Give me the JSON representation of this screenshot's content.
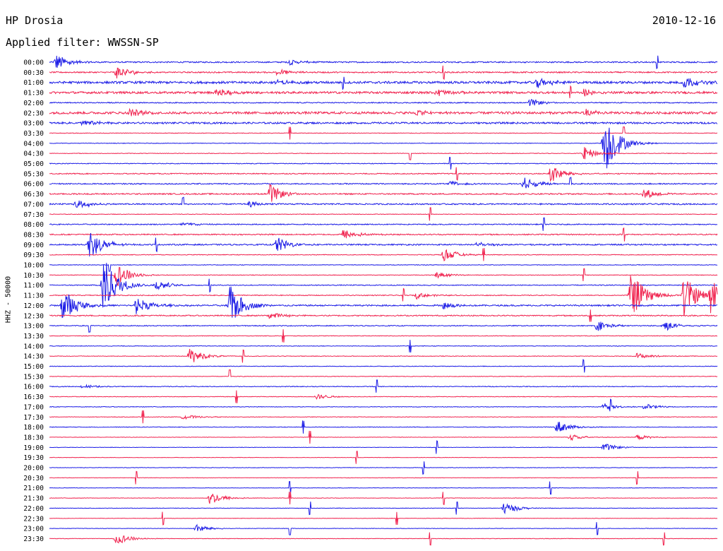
{
  "header": {
    "station": "HP Drosia",
    "date": "2010-12-16",
    "filter": "Applied filter: WWSSN-SP"
  },
  "axis_label": "HHZ - 50000",
  "colors": {
    "blue": "#1c1ce6",
    "red": "#f0234f"
  },
  "chart_data": {
    "type": "line",
    "title": "HP Drosia",
    "channel": "HHZ",
    "scale": 50000,
    "filter": "WWSSN-SP",
    "date": "2010-12-16",
    "row_labels": [
      "00:00",
      "00:30",
      "01:00",
      "01:30",
      "02:00",
      "02:30",
      "03:00",
      "03:30",
      "04:00",
      "04:30",
      "05:00",
      "05:30",
      "06:00",
      "06:30",
      "07:00",
      "07:30",
      "08:00",
      "08:30",
      "09:00",
      "09:30",
      "10:00",
      "10:30",
      "11:00",
      "11:30",
      "12:00",
      "12:30",
      "13:00",
      "13:30",
      "14:00",
      "14:30",
      "15:00",
      "15:30",
      "16:00",
      "16:30",
      "17:00",
      "17:30",
      "18:00",
      "18:30",
      "19:00",
      "19:30",
      "20:00",
      "20:30",
      "21:00",
      "21:30",
      "22:00",
      "22:30",
      "23:00",
      "23:30"
    ],
    "row_colors": [
      "blue",
      "red"
    ],
    "noise_level": [
      0.9,
      0.9,
      1.6,
      1.5,
      0.7,
      1.6,
      1.2,
      0.4,
      0.4,
      0.4,
      0.5,
      0.7,
      0.8,
      0.9,
      0.9,
      0.4,
      0.7,
      0.8,
      0.9,
      0.5,
      0.4,
      0.4,
      0.6,
      0.6,
      1.0,
      0.8,
      0.6,
      0.4,
      0.4,
      0.4,
      0.4,
      0.4,
      0.5,
      0.4,
      0.4,
      0.4,
      0.4,
      0.3,
      0.3,
      0.3,
      0.3,
      0.3,
      0.3,
      0.3,
      0.3,
      0.3,
      0.3,
      0.3
    ],
    "events": [
      {
        "row": 0,
        "t": 0.01,
        "amp": 12
      },
      {
        "row": 0,
        "t": 0.36,
        "amp": 4
      },
      {
        "row": 1,
        "t": 0.1,
        "amp": 10
      },
      {
        "row": 1,
        "t": 0.34,
        "amp": 5
      },
      {
        "row": 2,
        "t": 0.34,
        "amp": 4
      },
      {
        "row": 2,
        "t": 0.73,
        "amp": 8
      },
      {
        "row": 2,
        "t": 0.95,
        "amp": 9
      },
      {
        "row": 3,
        "t": 0.25,
        "amp": 6
      },
      {
        "row": 3,
        "t": 0.58,
        "amp": 6
      },
      {
        "row": 3,
        "t": 0.8,
        "amp": 5
      },
      {
        "row": 4,
        "t": 0.72,
        "amp": 6
      },
      {
        "row": 5,
        "t": 0.12,
        "amp": 6
      },
      {
        "row": 5,
        "t": 0.55,
        "amp": 5
      },
      {
        "row": 5,
        "t": 0.8,
        "amp": 6
      },
      {
        "row": 6,
        "t": 0.05,
        "amp": 6
      },
      {
        "row": 8,
        "t": 0.83,
        "amp": 48
      },
      {
        "row": 9,
        "t": 0.8,
        "amp": 10
      },
      {
        "row": 11,
        "t": 0.75,
        "amp": 14
      },
      {
        "row": 12,
        "t": 0.71,
        "amp": 10
      },
      {
        "row": 12,
        "t": 0.6,
        "amp": 4
      },
      {
        "row": 13,
        "t": 0.33,
        "amp": 14
      },
      {
        "row": 13,
        "t": 0.89,
        "amp": 8
      },
      {
        "row": 14,
        "t": 0.04,
        "amp": 8
      },
      {
        "row": 14,
        "t": 0.3,
        "amp": 4
      },
      {
        "row": 16,
        "t": 0.2,
        "amp": 4
      },
      {
        "row": 17,
        "t": 0.44,
        "amp": 8
      },
      {
        "row": 18,
        "t": 0.34,
        "amp": 12
      },
      {
        "row": 18,
        "t": 0.06,
        "amp": 24
      },
      {
        "row": 18,
        "t": 0.64,
        "amp": 4
      },
      {
        "row": 19,
        "t": 0.59,
        "amp": 10
      },
      {
        "row": 21,
        "t": 0.1,
        "amp": 18
      },
      {
        "row": 21,
        "t": 0.58,
        "amp": 5
      },
      {
        "row": 22,
        "t": 0.08,
        "amp": 44
      },
      {
        "row": 22,
        "t": 0.16,
        "amp": 8
      },
      {
        "row": 23,
        "t": 0.87,
        "amp": 36
      },
      {
        "row": 23,
        "t": 0.95,
        "amp": 30
      },
      {
        "row": 23,
        "t": 0.99,
        "amp": 26
      },
      {
        "row": 23,
        "t": 0.55,
        "amp": 5
      },
      {
        "row": 24,
        "t": 0.02,
        "amp": 26
      },
      {
        "row": 24,
        "t": 0.13,
        "amp": 14
      },
      {
        "row": 24,
        "t": 0.27,
        "amp": 30
      },
      {
        "row": 24,
        "t": 0.59,
        "amp": 6
      },
      {
        "row": 25,
        "t": 0.33,
        "amp": 6
      },
      {
        "row": 26,
        "t": 0.82,
        "amp": 8
      },
      {
        "row": 26,
        "t": 0.92,
        "amp": 8
      },
      {
        "row": 29,
        "t": 0.21,
        "amp": 12
      },
      {
        "row": 29,
        "t": 0.88,
        "amp": 5
      },
      {
        "row": 32,
        "t": 0.05,
        "amp": 3
      },
      {
        "row": 33,
        "t": 0.4,
        "amp": 4
      },
      {
        "row": 34,
        "t": 0.83,
        "amp": 5
      },
      {
        "row": 34,
        "t": 0.89,
        "amp": 5
      },
      {
        "row": 35,
        "t": 0.2,
        "amp": 4
      },
      {
        "row": 36,
        "t": 0.76,
        "amp": 10
      },
      {
        "row": 37,
        "t": 0.78,
        "amp": 5
      },
      {
        "row": 37,
        "t": 0.88,
        "amp": 4
      },
      {
        "row": 38,
        "t": 0.83,
        "amp": 6
      },
      {
        "row": 43,
        "t": 0.24,
        "amp": 10
      },
      {
        "row": 44,
        "t": 0.68,
        "amp": 9
      },
      {
        "row": 46,
        "t": 0.22,
        "amp": 6
      },
      {
        "row": 47,
        "t": 0.1,
        "amp": 9
      }
    ],
    "glitches": [
      {
        "row": 0,
        "t": 0.91
      },
      {
        "row": 1,
        "t": 0.59
      },
      {
        "row": 2,
        "t": 0.44
      },
      {
        "row": 3,
        "t": 0.78
      },
      {
        "row": 7,
        "t": 0.36
      },
      {
        "row": 7,
        "t": 0.86
      },
      {
        "row": 9,
        "t": 0.54
      },
      {
        "row": 10,
        "t": 0.6
      },
      {
        "row": 11,
        "t": 0.61
      },
      {
        "row": 12,
        "t": 0.78
      },
      {
        "row": 14,
        "t": 0.2
      },
      {
        "row": 15,
        "t": 0.57
      },
      {
        "row": 16,
        "t": 0.74
      },
      {
        "row": 17,
        "t": 0.86
      },
      {
        "row": 18,
        "t": 0.16
      },
      {
        "row": 19,
        "t": 0.65
      },
      {
        "row": 20,
        "t": 0.09
      },
      {
        "row": 21,
        "t": 0.8
      },
      {
        "row": 22,
        "t": 0.24
      },
      {
        "row": 23,
        "t": 0.53
      },
      {
        "row": 25,
        "t": 0.81
      },
      {
        "row": 26,
        "t": 0.06
      },
      {
        "row": 27,
        "t": 0.35
      },
      {
        "row": 28,
        "t": 0.54
      },
      {
        "row": 29,
        "t": 0.29
      },
      {
        "row": 30,
        "t": 0.8
      },
      {
        "row": 31,
        "t": 0.27
      },
      {
        "row": 32,
        "t": 0.49
      },
      {
        "row": 33,
        "t": 0.28
      },
      {
        "row": 34,
        "t": 0.84
      },
      {
        "row": 35,
        "t": 0.14
      },
      {
        "row": 36,
        "t": 0.38
      },
      {
        "row": 37,
        "t": 0.39
      },
      {
        "row": 38,
        "t": 0.58
      },
      {
        "row": 39,
        "t": 0.46
      },
      {
        "row": 40,
        "t": 0.56
      },
      {
        "row": 41,
        "t": 0.13
      },
      {
        "row": 41,
        "t": 0.88
      },
      {
        "row": 42,
        "t": 0.36
      },
      {
        "row": 42,
        "t": 0.75
      },
      {
        "row": 43,
        "t": 0.36
      },
      {
        "row": 43,
        "t": 0.59
      },
      {
        "row": 44,
        "t": 0.39
      },
      {
        "row": 44,
        "t": 0.61
      },
      {
        "row": 45,
        "t": 0.17
      },
      {
        "row": 45,
        "t": 0.52
      },
      {
        "row": 46,
        "t": 0.36
      },
      {
        "row": 46,
        "t": 0.82
      },
      {
        "row": 47,
        "t": 0.57
      },
      {
        "row": 47,
        "t": 0.92
      }
    ]
  }
}
